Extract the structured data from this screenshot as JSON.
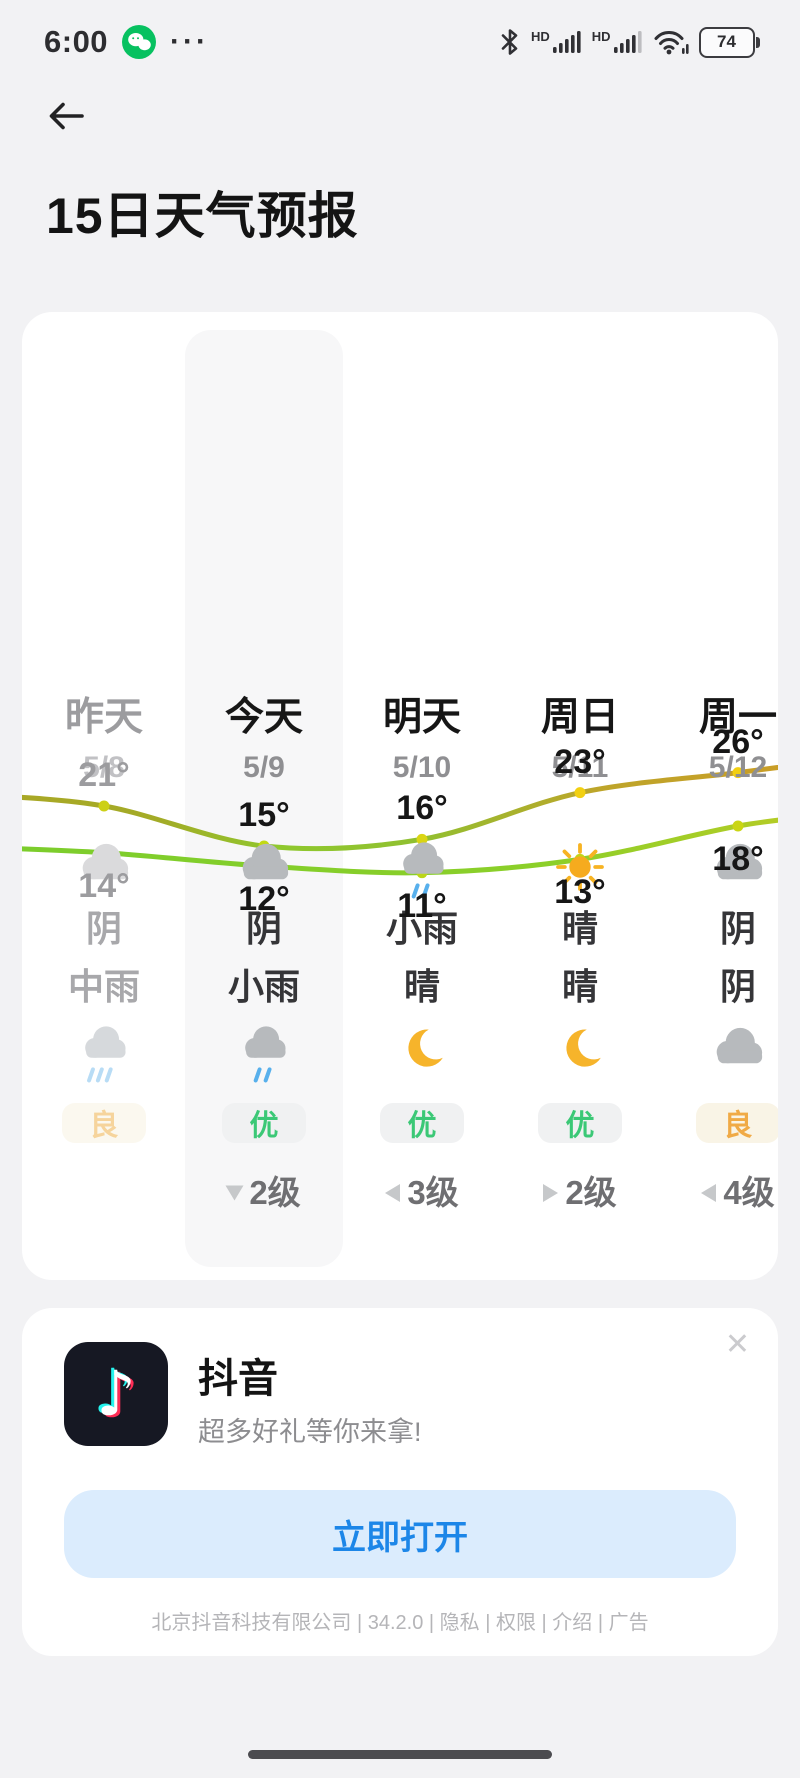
{
  "status_bar": {
    "time": "6:00",
    "more_dots": "···",
    "hd_label": "HD",
    "hd_label2": "HD",
    "battery_percent": "74"
  },
  "header": {
    "title": "15日天气预报"
  },
  "forecast": {
    "columns": [
      {
        "day": "昨天",
        "date": "5/8",
        "day_icon": "cloud-light",
        "day_cond": "阴",
        "high": "21°",
        "low": "14°",
        "night_cond": "中雨",
        "night_icon": "rain-light",
        "aqi": "良",
        "aqi_type": "liang-muted",
        "wind": "",
        "wind_dir": "",
        "muted": true,
        "selected": false
      },
      {
        "day": "今天",
        "date": "5/9",
        "day_icon": "cloud",
        "day_cond": "阴",
        "high": "15°",
        "low": "12°",
        "night_cond": "小雨",
        "night_icon": "rain",
        "aqi": "优",
        "aqi_type": "you",
        "wind": "2级",
        "wind_dir": "down",
        "muted": false,
        "selected": true
      },
      {
        "day": "明天",
        "date": "5/10",
        "day_icon": "rain",
        "day_cond": "小雨",
        "high": "16°",
        "low": "11°",
        "night_cond": "晴",
        "night_icon": "moon",
        "aqi": "优",
        "aqi_type": "you",
        "wind": "3级",
        "wind_dir": "left",
        "muted": false,
        "selected": false
      },
      {
        "day": "周日",
        "date": "5/11",
        "day_icon": "sun",
        "day_cond": "晴",
        "high": "23°",
        "low": "13°",
        "night_cond": "晴",
        "night_icon": "moon",
        "aqi": "优",
        "aqi_type": "you",
        "wind": "2级",
        "wind_dir": "right",
        "muted": false,
        "selected": false
      },
      {
        "day": "周一",
        "date": "5/12",
        "day_icon": "cloud",
        "day_cond": "阴",
        "high": "26°",
        "low": "18°",
        "night_cond": "阴",
        "night_icon": "cloud",
        "aqi": "良",
        "aqi_type": "liang",
        "wind": "4级",
        "wind_dir": "left",
        "muted": false,
        "selected": false
      }
    ]
  },
  "chart_data": {
    "type": "line",
    "x": [
      "5/8",
      "5/9",
      "5/10",
      "5/11",
      "5/12"
    ],
    "series": [
      {
        "name": "high",
        "values": [
          21,
          15,
          16,
          23,
          26
        ]
      },
      {
        "name": "low",
        "values": [
          14,
          12,
          11,
          13,
          18
        ]
      }
    ],
    "unit": "°C",
    "legend": "none",
    "grid": false,
    "colors": {
      "high_left": "#a9a826",
      "high_mid": "#8fc82e",
      "high_right": "#c99e27",
      "low_left": "#7ccd2c",
      "low_right": "#b3cc26",
      "dot_high": "#f2d011",
      "dot_low": "#a8d61c"
    }
  },
  "ad": {
    "app_name": "抖音",
    "tagline": "超多好礼等你来拿!",
    "cta_label": "立即打开",
    "close_label": "✕",
    "note_glyph": "♪",
    "footer": "北京抖音科技有限公司 | 34.2.0 | 隐私 | 权限 | 介绍 | 广告"
  }
}
